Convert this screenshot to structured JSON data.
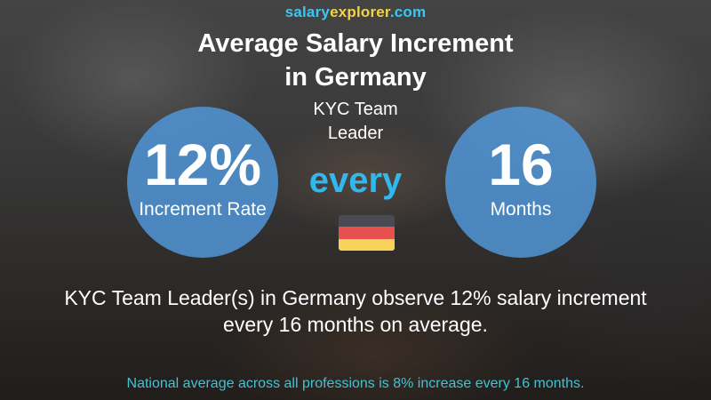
{
  "brand": {
    "part1": "salary",
    "part2": "explorer",
    "part3": ".com"
  },
  "title": {
    "line1": "Average Salary Increment",
    "line2": "in Germany"
  },
  "job_title": {
    "line1": "KYC Team",
    "line2": "Leader"
  },
  "increment": {
    "value": "12%",
    "label": "Increment Rate"
  },
  "connector": "every",
  "frequency": {
    "value": "16",
    "label": "Months"
  },
  "flag": {
    "country": "Germany",
    "icon": "germany-flag-icon",
    "colors": [
      "#4a4a52",
      "#e84f4f",
      "#f7d35a"
    ]
  },
  "summary": {
    "line1": "KYC Team Leader(s) in Germany observe 12% salary increment",
    "line2": "every 16 months on average."
  },
  "footer": "National average across all professions is 8% increase every 16 months.",
  "colors": {
    "brand_blue": "#3ec5f0",
    "brand_yellow": "#f2d24a",
    "circle": "#5096d7",
    "every": "#2fb9ee",
    "footer_text": "#3fc4d6"
  }
}
